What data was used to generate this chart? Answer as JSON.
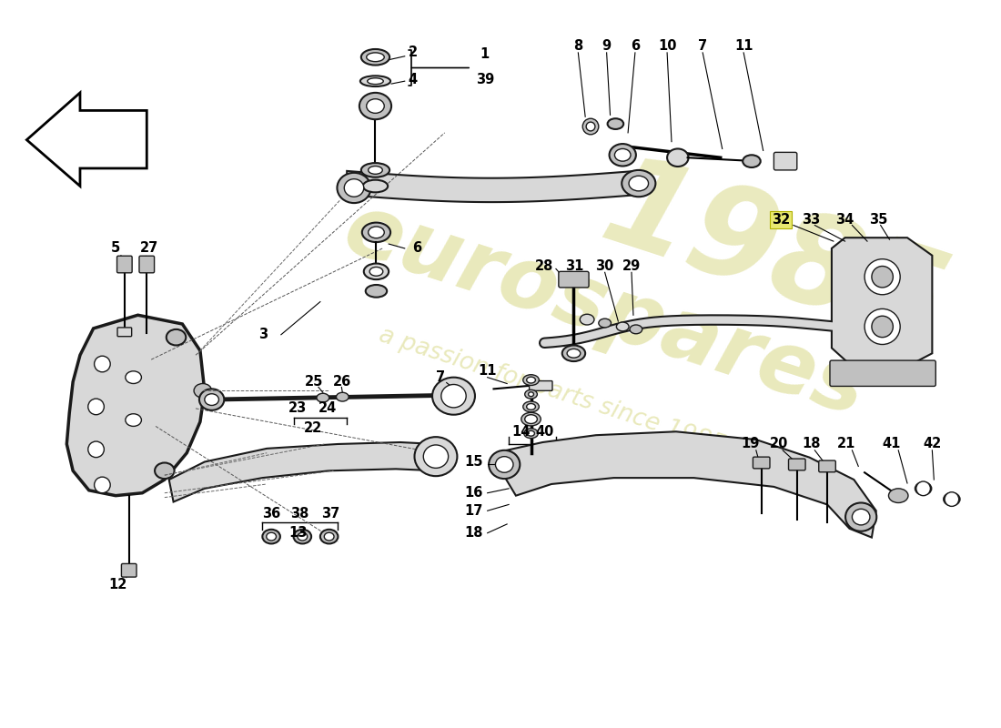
{
  "bg_color": "#ffffff",
  "line_color": "#1a1a1a",
  "fill_light": "#d8d8d8",
  "fill_mid": "#c0c0c0",
  "fill_dark": "#a0a0a0",
  "watermark_color": "#e8e8b8",
  "highlight_yellow": "#e8e870",
  "label_fontsize": 10.5
}
